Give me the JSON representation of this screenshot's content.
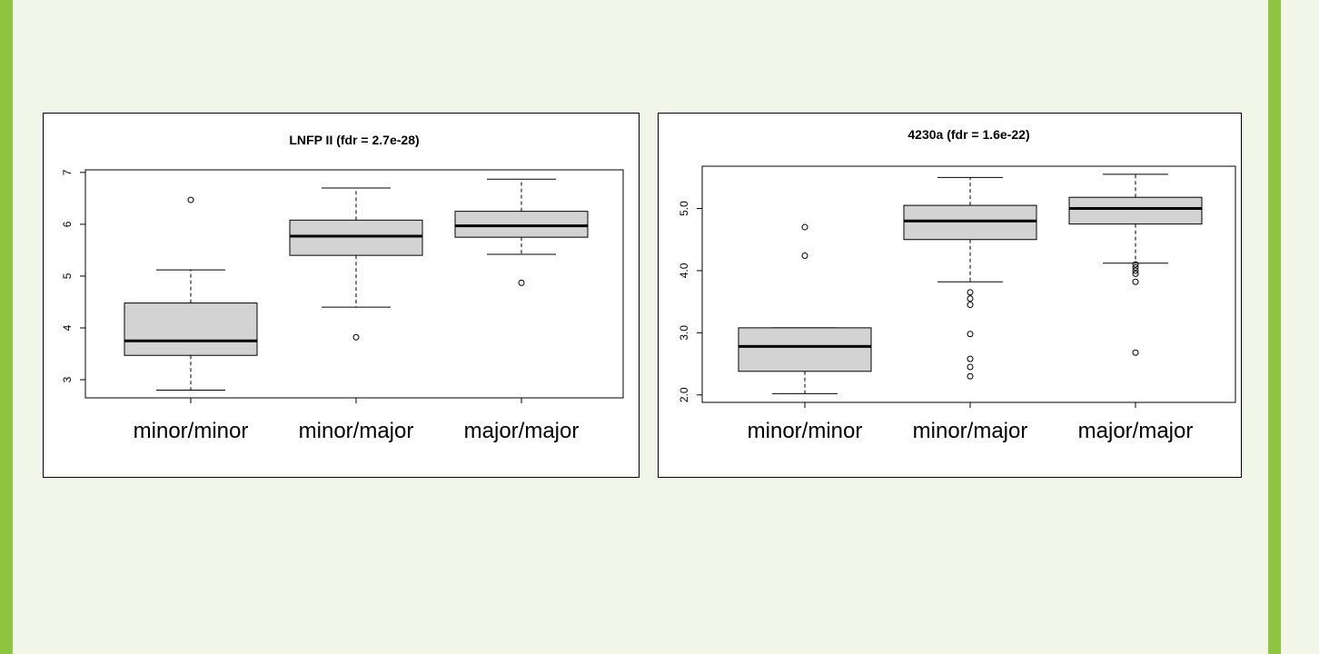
{
  "chart_data": [
    {
      "type": "boxplot",
      "title": "LNFP II (fdr = 2.7e-28)",
      "categories": [
        "minor/minor",
        "minor/major",
        "major/major"
      ],
      "ylim": [
        2.65,
        7.05
      ],
      "yticks": [
        3,
        4,
        5,
        6,
        7
      ],
      "ytick_labels": [
        "3",
        "4",
        "5",
        "6",
        "7"
      ],
      "boxes": [
        {
          "whisker_low": 2.8,
          "q1": 3.47,
          "median": 3.75,
          "q3": 4.48,
          "whisker_high": 5.12,
          "outliers": [
            6.47
          ]
        },
        {
          "whisker_low": 4.4,
          "q1": 5.4,
          "median": 5.77,
          "q3": 6.08,
          "whisker_high": 6.7,
          "outliers": [
            3.82
          ]
        },
        {
          "whisker_low": 5.42,
          "q1": 5.75,
          "median": 5.97,
          "q3": 6.25,
          "whisker_high": 6.87,
          "outliers": [
            4.87
          ]
        }
      ],
      "grid": false,
      "colors": {
        "box": "#d3d3d3",
        "line": "#000000"
      }
    },
    {
      "type": "boxplot",
      "title": "4230a (fdr = 1.6e-22)",
      "categories": [
        "minor/minor",
        "minor/major",
        "major/major"
      ],
      "ylim": [
        1.88,
        5.68
      ],
      "yticks": [
        2.0,
        3.0,
        4.0,
        5.0
      ],
      "ytick_labels": [
        "2.0",
        "3.0",
        "4.0",
        "5.0"
      ],
      "boxes": [
        {
          "whisker_low": 2.02,
          "q1": 2.38,
          "median": 2.78,
          "q3": 3.08,
          "whisker_high": 3.08,
          "outliers": [
            4.7,
            4.24
          ]
        },
        {
          "whisker_low": 3.82,
          "q1": 4.5,
          "median": 4.8,
          "q3": 5.05,
          "whisker_high": 5.5,
          "outliers": [
            3.65,
            3.55,
            3.45,
            2.98,
            2.58,
            2.45,
            2.3
          ]
        },
        {
          "whisker_low": 4.12,
          "q1": 4.75,
          "median": 5.0,
          "q3": 5.18,
          "whisker_high": 5.55,
          "outliers": [
            4.1,
            4.05,
            4.0,
            3.95,
            3.82,
            2.68
          ]
        }
      ],
      "grid": false,
      "colors": {
        "box": "#d3d3d3",
        "line": "#000000"
      }
    }
  ],
  "colors": {
    "background": "#f2f6e8",
    "accent_bar": "#8fc641"
  }
}
